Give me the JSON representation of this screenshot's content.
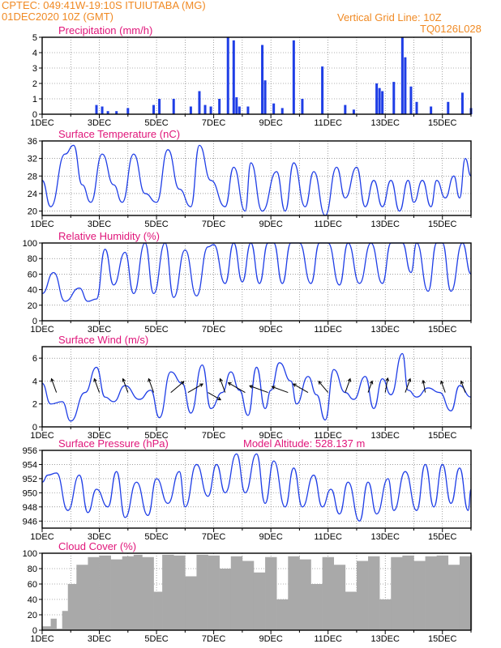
{
  "header": {
    "line1": "CPTEC:  049:41W-19:10S  ITUIUTABA (MG)",
    "line2": "01DEC2020 10Z (GMT)",
    "right1": "Vertical Grid Line: 10Z",
    "right2": "TQ0126L028"
  },
  "colors": {
    "header": "#f08a24",
    "title": "#e0167a",
    "series": "#1f3ee6",
    "cloud": "#a9a9a9"
  },
  "x_labels": [
    "1DEC",
    "3DEC",
    "5DEC",
    "7DEC",
    "9DEC",
    "11DEC",
    "13DEC",
    "15DEC"
  ],
  "chart_data": [
    {
      "id": "precip",
      "type": "bar",
      "title": "Precipitation (mm/h)",
      "ylim": [
        0,
        5
      ],
      "yticks": [
        0,
        1,
        2,
        3,
        4,
        5
      ],
      "x": [
        2.9,
        3.1,
        3.3,
        3.6,
        4.0,
        4.9,
        5.1,
        5.6,
        6.2,
        6.5,
        6.7,
        6.9,
        7.2,
        7.5,
        7.7,
        7.8,
        7.9,
        8.2,
        8.7,
        8.8,
        9.1,
        9.4,
        9.8,
        10.1,
        10.8,
        11.6,
        11.9,
        12.7,
        12.8,
        12.9,
        13.3,
        13.6,
        13.7,
        13.9,
        14.1,
        14.6,
        15.2,
        15.7,
        16.0
      ],
      "values": [
        0.6,
        0.5,
        0.2,
        0.2,
        0.4,
        0.6,
        1.0,
        1.0,
        0.5,
        1.5,
        0.6,
        0.5,
        1.0,
        5.0,
        4.8,
        1.1,
        0.5,
        0.5,
        4.5,
        2.2,
        0.7,
        0.4,
        4.8,
        1.0,
        3.1,
        0.6,
        0.3,
        2.0,
        1.7,
        1.5,
        2.1,
        5.0,
        3.7,
        1.8,
        0.8,
        0.5,
        0.8,
        1.4,
        0.4
      ]
    },
    {
      "id": "temp",
      "type": "line",
      "title": "Surface Temperature (nC)",
      "ylim": [
        19,
        36
      ],
      "yticks": [
        20,
        24,
        28,
        32,
        36
      ],
      "x": [
        1.0,
        1.3,
        1.8,
        2.1,
        2.4,
        2.7,
        3.1,
        3.5,
        3.8,
        4.2,
        4.6,
        5.0,
        5.4,
        5.8,
        6.2,
        6.5,
        6.9,
        7.4,
        7.7,
        8.1,
        8.3,
        8.7,
        9.2,
        9.5,
        9.8,
        10.2,
        10.5,
        10.9,
        11.3,
        11.6,
        12.0,
        12.3,
        12.6,
        12.9,
        13.2,
        13.5,
        13.8,
        14.0,
        14.3,
        14.6,
        14.8,
        15.1,
        15.4,
        15.6,
        15.8,
        16.0
      ],
      "values": [
        27,
        21,
        33,
        35,
        26,
        22,
        33,
        26,
        22,
        33,
        24,
        22,
        34,
        25,
        21,
        35,
        27,
        21,
        30,
        20,
        31,
        20,
        29,
        20,
        31,
        21,
        29,
        19,
        30,
        23,
        30,
        21,
        27,
        21,
        27,
        20,
        27,
        22,
        27,
        21,
        27,
        23,
        28,
        23,
        32,
        28
      ]
    },
    {
      "id": "rh",
      "type": "line",
      "title": "Relative Humidity (%)",
      "ylim": [
        0,
        100
      ],
      "yticks": [
        0,
        20,
        40,
        60,
        80,
        100
      ],
      "x": [
        1.0,
        1.4,
        1.8,
        2.3,
        2.6,
        2.9,
        3.2,
        3.5,
        3.9,
        4.2,
        4.6,
        4.9,
        5.3,
        5.6,
        6.0,
        6.4,
        6.8,
        7.0,
        7.4,
        7.7,
        8.0,
        8.3,
        8.6,
        8.9,
        9.1,
        9.4,
        9.7,
        10.0,
        10.4,
        10.7,
        11.0,
        11.4,
        11.7,
        12.1,
        12.5,
        12.9,
        13.2,
        13.6,
        13.9,
        14.1,
        14.5,
        14.8,
        15.0,
        15.3,
        15.7,
        16.0
      ],
      "values": [
        35,
        62,
        25,
        42,
        25,
        28,
        92,
        46,
        88,
        35,
        100,
        35,
        100,
        30,
        91,
        32,
        95,
        98,
        48,
        100,
        50,
        100,
        48,
        100,
        100,
        48,
        100,
        100,
        48,
        100,
        100,
        46,
        100,
        48,
        100,
        48,
        100,
        100,
        62,
        100,
        38,
        100,
        100,
        38,
        100,
        60
      ]
    },
    {
      "id": "wind",
      "type": "line",
      "title": "Surface Wind (m/s)",
      "ylim": [
        0,
        7
      ],
      "yticks": [
        0,
        2,
        4,
        6
      ],
      "x": [
        1.0,
        1.3,
        1.7,
        2.0,
        2.5,
        2.9,
        3.2,
        3.5,
        3.9,
        4.4,
        4.8,
        5.1,
        5.5,
        5.9,
        6.2,
        6.6,
        6.9,
        7.3,
        7.6,
        7.9,
        8.2,
        8.5,
        8.8,
        9.0,
        9.3,
        9.7,
        9.9,
        10.3,
        10.6,
        10.9,
        11.2,
        11.6,
        11.9,
        12.3,
        12.6,
        12.9,
        13.2,
        13.6,
        13.8,
        14.1,
        14.5,
        14.9,
        15.3,
        15.6,
        16.0
      ],
      "values": [
        3.8,
        2.0,
        2.2,
        0.5,
        3.0,
        5.2,
        2.6,
        2.2,
        3.6,
        2.4,
        3.2,
        0.8,
        4.8,
        3.8,
        1.2,
        5.4,
        1.6,
        3.0,
        4.8,
        3.2,
        1.0,
        5.2,
        1.6,
        3.2,
        5.6,
        4.0,
        2.0,
        4.4,
        2.8,
        0.6,
        5.0,
        3.0,
        2.4,
        4.4,
        1.6,
        4.2,
        2.8,
        6.4,
        3.2,
        2.6,
        3.4,
        3.0,
        1.4,
        3.6,
        2.6
      ],
      "arrows": [
        {
          "x": 1.5,
          "speed": 3.0,
          "dir": 200
        },
        {
          "x": 3.0,
          "speed": 3.0,
          "dir": 200
        },
        {
          "x": 4.0,
          "speed": 3.0,
          "dir": 200
        },
        {
          "x": 4.9,
          "speed": 3.0,
          "dir": 200
        },
        {
          "x": 5.5,
          "speed": 3.5,
          "dir": 130
        },
        {
          "x": 6.1,
          "speed": 3.5,
          "dir": 120
        },
        {
          "x": 6.8,
          "speed": 3.0,
          "dir": 60
        },
        {
          "x": 7.4,
          "speed": 3.0,
          "dir": 200
        },
        {
          "x": 8.1,
          "speed": 4.0,
          "dir": 240
        },
        {
          "x": 8.9,
          "speed": 4.0,
          "dir": 250
        },
        {
          "x": 9.6,
          "speed": 3.5,
          "dir": 250
        },
        {
          "x": 10.3,
          "speed": 3.5,
          "dir": 240
        },
        {
          "x": 11.0,
          "speed": 3.0,
          "dir": 220
        },
        {
          "x": 11.6,
          "speed": 3.0,
          "dir": 160
        },
        {
          "x": 12.4,
          "speed": 2.5,
          "dir": 160
        },
        {
          "x": 13.0,
          "speed": 3.0,
          "dir": 170
        },
        {
          "x": 13.7,
          "speed": 3.0,
          "dir": 160
        },
        {
          "x": 14.4,
          "speed": 2.5,
          "dir": 190
        },
        {
          "x": 15.1,
          "speed": 2.5,
          "dir": 200
        },
        {
          "x": 15.8,
          "speed": 2.5,
          "dir": 200
        }
      ]
    },
    {
      "id": "pres",
      "type": "line",
      "title": "Surface Pressure (hPa)",
      "subtitle": "Model Altitude: 528.137 m",
      "ylim": [
        945,
        956
      ],
      "yticks": [
        946,
        948,
        950,
        952,
        954,
        956
      ],
      "x": [
        1.0,
        1.2,
        1.5,
        1.9,
        2.3,
        2.6,
        2.9,
        3.3,
        3.6,
        3.9,
        4.3,
        4.7,
        5.0,
        5.4,
        5.8,
        6.0,
        6.4,
        6.8,
        7.1,
        7.4,
        7.8,
        8.1,
        8.5,
        8.8,
        9.1,
        9.5,
        9.8,
        10.1,
        10.5,
        10.8,
        11.1,
        11.4,
        11.7,
        12.1,
        12.4,
        12.7,
        13.1,
        13.3,
        13.7,
        14.1,
        14.4,
        14.7,
        15.0,
        15.3,
        15.6,
        15.9,
        16.0
      ],
      "values": [
        951.5,
        952.5,
        952.8,
        947.5,
        952.5,
        947.2,
        950.5,
        948.0,
        953.0,
        946.5,
        951.5,
        946.8,
        952.0,
        948.5,
        953.0,
        948.0,
        954.0,
        949.5,
        954.0,
        950.0,
        955.5,
        950.0,
        955.5,
        948.5,
        954.5,
        948.0,
        953.5,
        948.0,
        952.5,
        948.0,
        950.5,
        947.0,
        951.5,
        946.0,
        951.5,
        947.0,
        952.0,
        947.5,
        953.0,
        947.5,
        954.0,
        948.0,
        954.0,
        948.5,
        953.5,
        947.5,
        950.5
      ]
    },
    {
      "id": "cloud",
      "type": "bar",
      "title": "Cloud Cover (%)",
      "ylim": [
        0,
        100
      ],
      "yticks": [
        0,
        20,
        40,
        60,
        80,
        100
      ],
      "x": [
        1.0,
        1.3,
        1.5,
        1.7,
        1.9,
        2.2,
        2.6,
        3.0,
        3.4,
        3.8,
        4.2,
        4.5,
        4.9,
        5.2,
        5.6,
        6.0,
        6.4,
        6.8,
        7.2,
        7.6,
        8.0,
        8.4,
        8.8,
        9.2,
        9.6,
        10.0,
        10.4,
        10.8,
        11.2,
        11.6,
        12.0,
        12.4,
        12.8,
        13.2,
        13.6,
        14.0,
        14.4,
        14.8,
        15.2,
        15.6,
        16.0
      ],
      "values": [
        5,
        15,
        2,
        25,
        60,
        85,
        95,
        97,
        92,
        96,
        98,
        95,
        50,
        98,
        97,
        70,
        98,
        97,
        80,
        96,
        90,
        75,
        95,
        40,
        96,
        92,
        60,
        95,
        85,
        50,
        90,
        96,
        40,
        95,
        97,
        90,
        96,
        97,
        85,
        96,
        98
      ]
    }
  ]
}
